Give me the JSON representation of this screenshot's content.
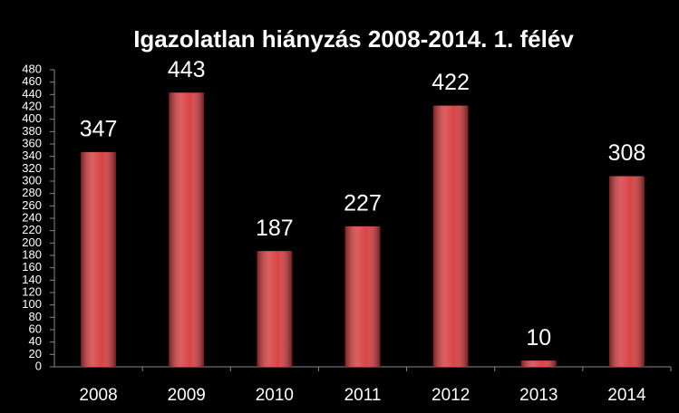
{
  "chart_data": {
    "type": "bar",
    "title": "Igazolatlan hiányzás 2008-2014. 1. félév",
    "categories": [
      "2008",
      "2009",
      "2010",
      "2011",
      "2012",
      "2013",
      "2014"
    ],
    "values": [
      347,
      443,
      187,
      227,
      422,
      10,
      308
    ],
    "color": "#d63a3c",
    "ylim": [
      0,
      480
    ],
    "yticks": [
      0,
      20,
      40,
      60,
      80,
      100,
      120,
      140,
      160,
      180,
      200,
      220,
      240,
      260,
      280,
      300,
      320,
      340,
      360,
      380,
      400,
      420,
      440,
      460,
      480
    ],
    "grid": false
  }
}
